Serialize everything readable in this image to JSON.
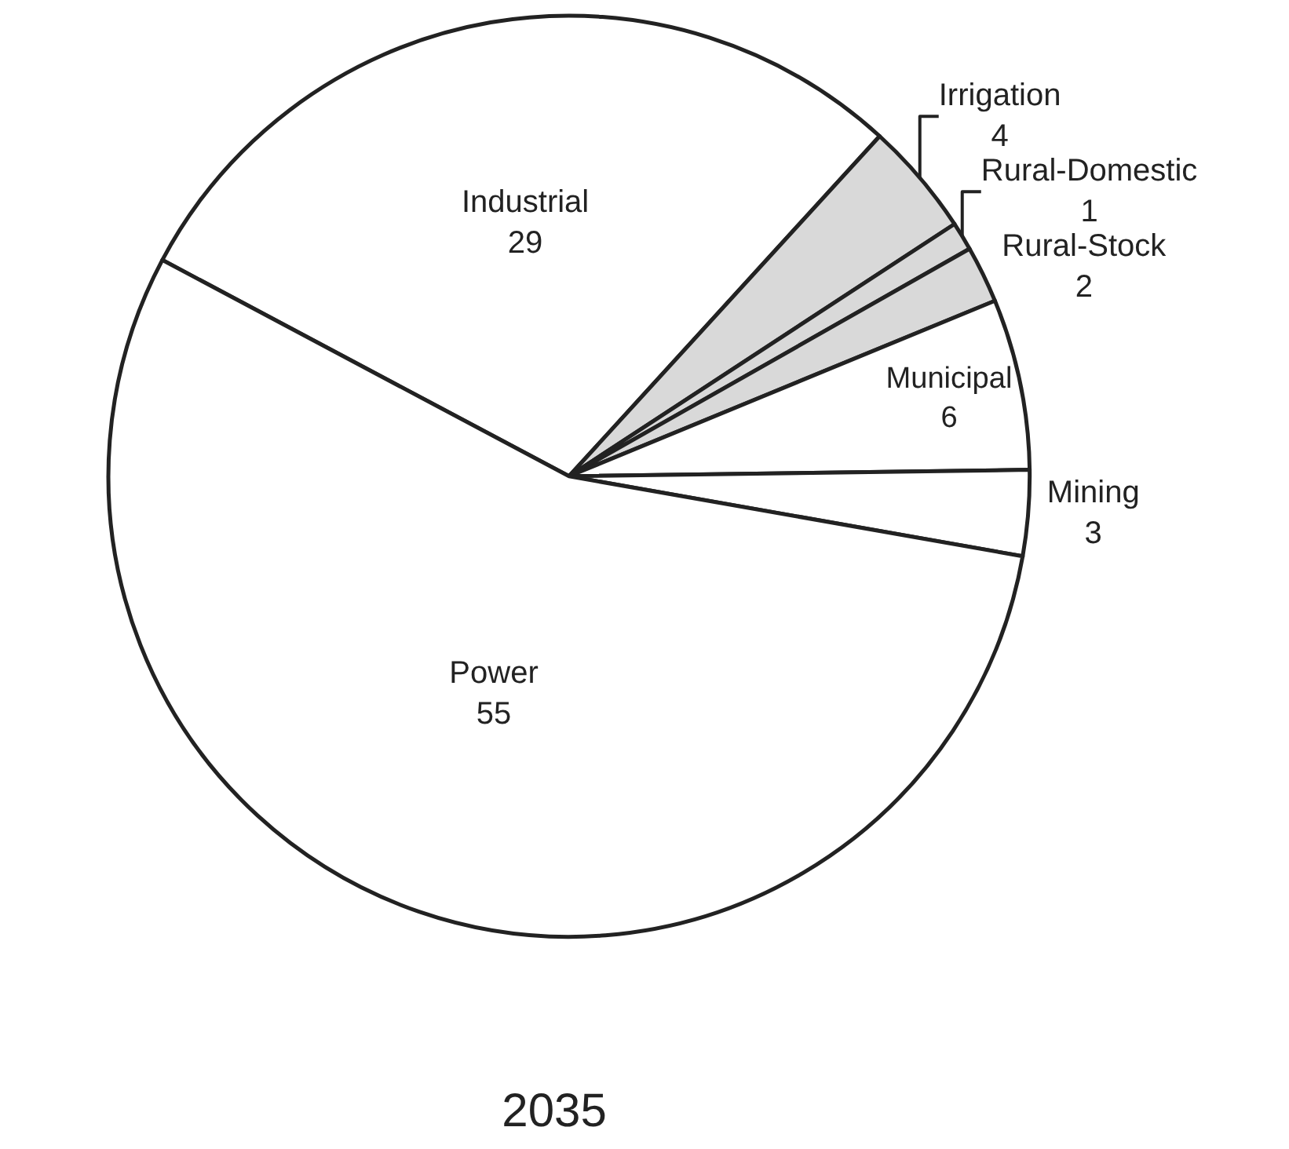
{
  "chart_data": {
    "type": "pie",
    "title": "2035",
    "categories": [
      "Industrial",
      "Irrigation",
      "Rural-Domestic",
      "Rural-Stock",
      "Municipal",
      "Mining",
      "Power"
    ],
    "values": [
      29,
      4,
      1,
      2,
      6,
      3,
      55
    ],
    "colors": [
      "#ffffff",
      "#d9d9d9",
      "#d9d9d9",
      "#d9d9d9",
      "#ffffff",
      "#ffffff",
      "#ffffff"
    ],
    "data_labels": true
  }
}
